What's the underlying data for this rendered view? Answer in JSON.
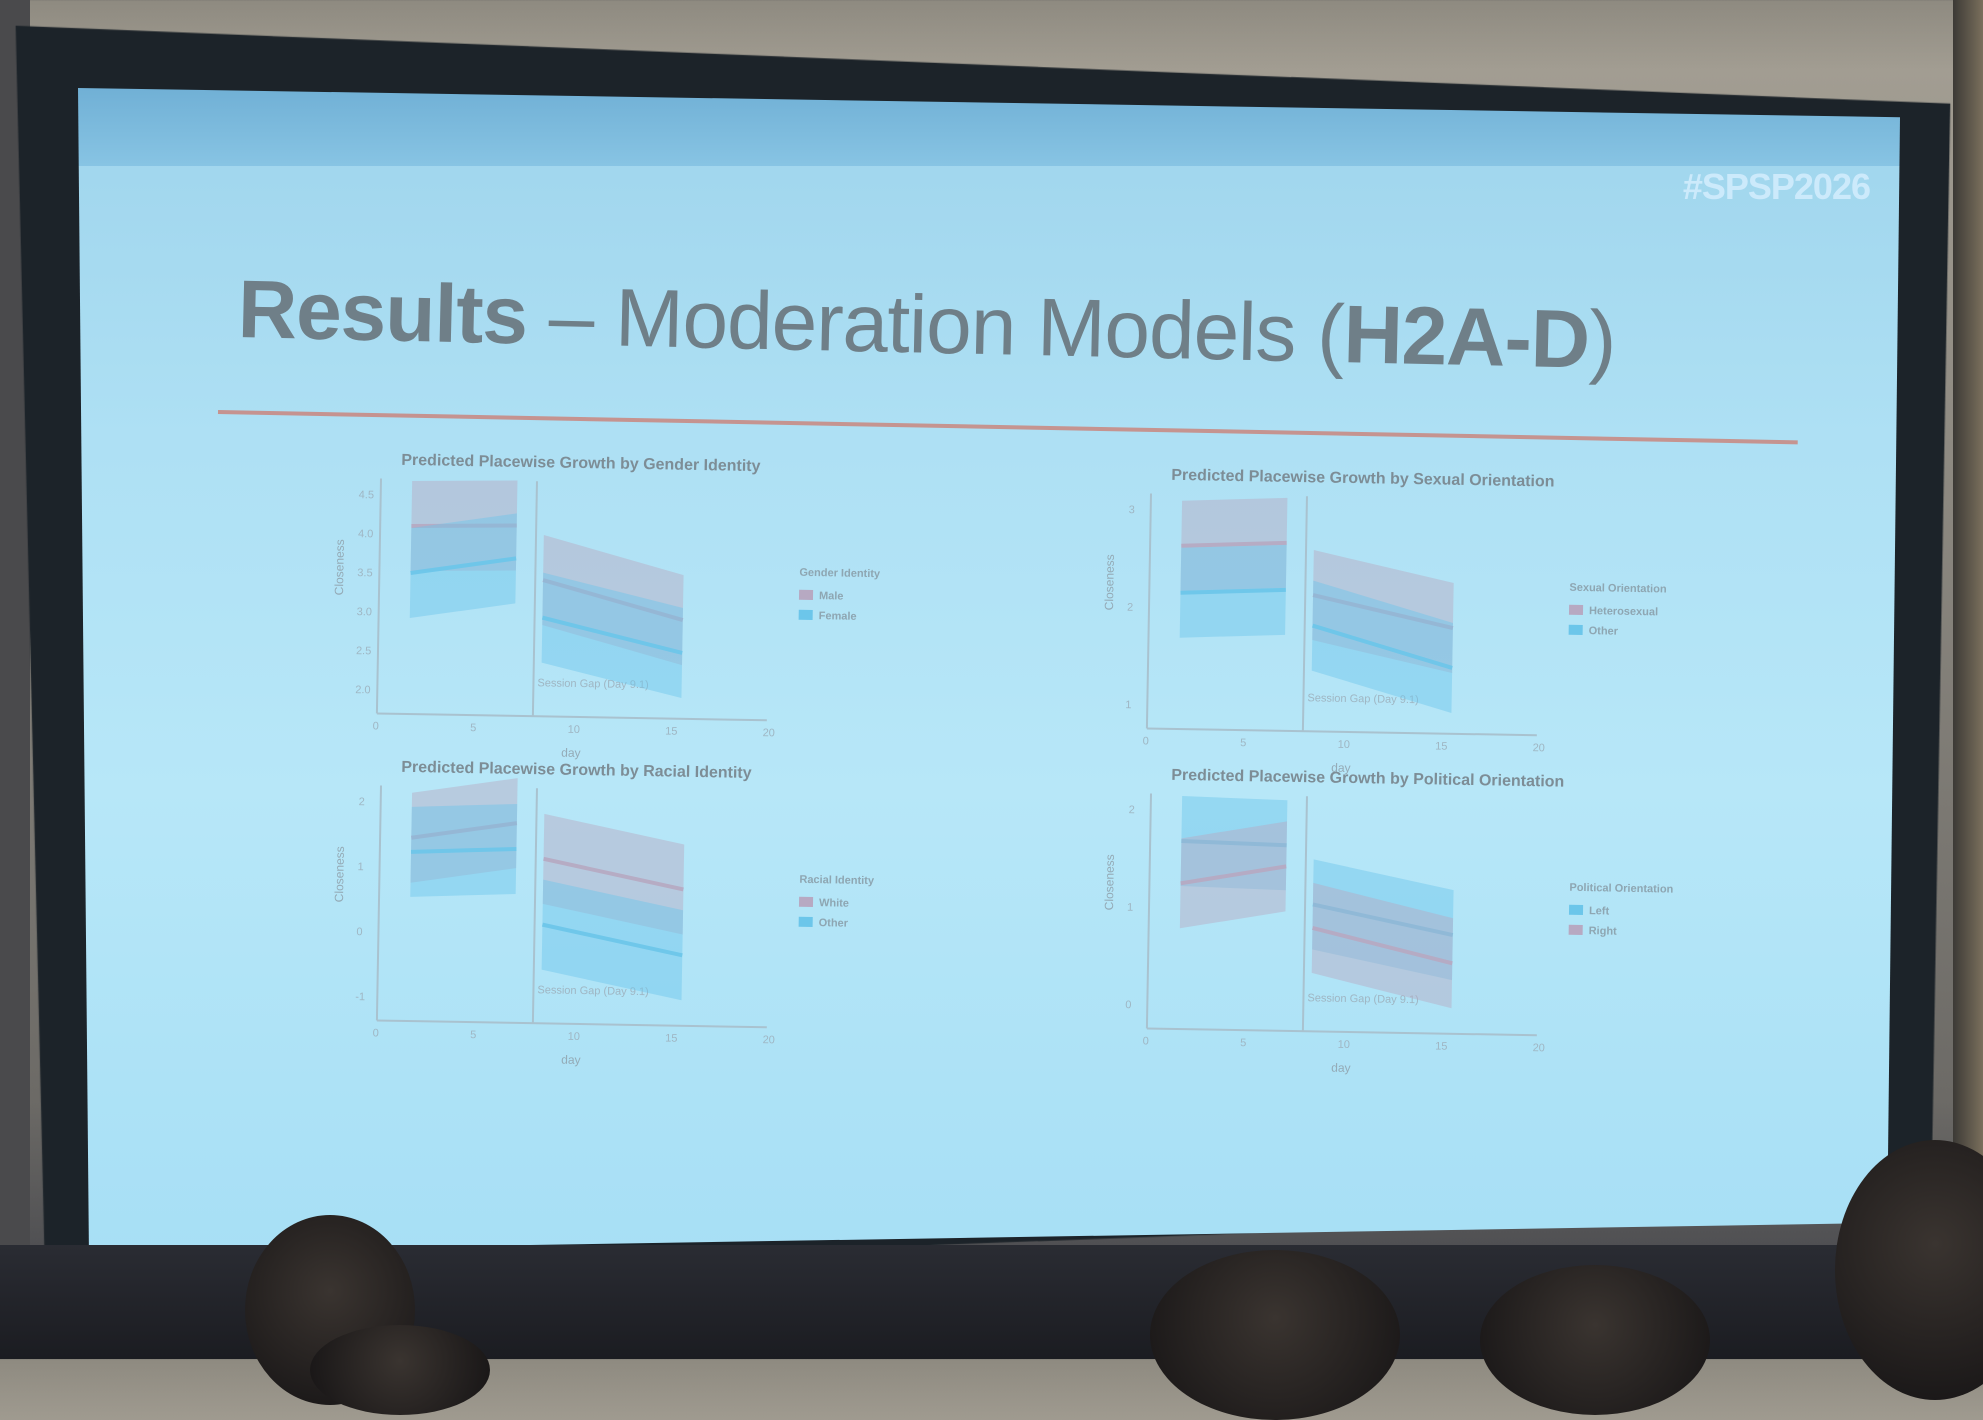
{
  "slide": {
    "hashtag": "#SPSP2026",
    "title_part1": "Results",
    "title_part2": " – Moderation Models (",
    "title_part3": "H2A-D",
    "title_part4": ")"
  },
  "panels": [
    {
      "title": "Predicted Placewise Growth by Gender Identity",
      "ylabel": "Closeness",
      "xlabel": "day",
      "yticks": [
        "2.0",
        "2.5",
        "3.0",
        "3.5",
        "4.0",
        "4.5"
      ],
      "xticks": [
        "0",
        "5",
        "10",
        "15",
        "20"
      ],
      "vline_label": "Session Gap (Day 9.1)",
      "legend_title": "Gender Identity",
      "legend": [
        "Male",
        "Female"
      ],
      "upper_color": "#b7a9c2",
      "lower_color": "#6cc6ea"
    },
    {
      "title": "Predicted Placewise Growth by Sexual Orientation",
      "ylabel": "Closeness",
      "xlabel": "day",
      "yticks": [
        "1",
        "2",
        "3"
      ],
      "xticks": [
        "0",
        "5",
        "10",
        "15",
        "20"
      ],
      "vline_label": "Session Gap (Day 9.1)",
      "legend_title": "Sexual Orientation",
      "legend": [
        "Heterosexual",
        "Other"
      ],
      "upper_color": "#b7a9c2",
      "lower_color": "#6cc6ea"
    },
    {
      "title": "Predicted Placewise Growth by Racial Identity",
      "ylabel": "Closeness",
      "xlabel": "day",
      "yticks": [
        "-1",
        "0",
        "1",
        "2"
      ],
      "xticks": [
        "0",
        "5",
        "10",
        "15",
        "20"
      ],
      "vline_label": "Session Gap (Day 9.1)",
      "legend_title": "Racial Identity",
      "legend": [
        "White",
        "Other"
      ],
      "upper_color": "#b7a9c2",
      "lower_color": "#6cc6ea"
    },
    {
      "title": "Predicted Placewise Growth by Political Orientation",
      "ylabel": "Closeness",
      "xlabel": "day",
      "yticks": [
        "0",
        "1",
        "2"
      ],
      "xticks": [
        "0",
        "5",
        "10",
        "15",
        "20"
      ],
      "vline_label": "Session Gap (Day 9.1)",
      "legend_title": "Political Orientation",
      "legend": [
        "Left",
        "Right"
      ],
      "upper_color": "#6cc6ea",
      "lower_color": "#b7a9c2"
    }
  ],
  "icons": [
    "pen-icon",
    "pointer-icon",
    "search-icon",
    "grid-icon",
    "slides-icon",
    "more-icon"
  ]
}
